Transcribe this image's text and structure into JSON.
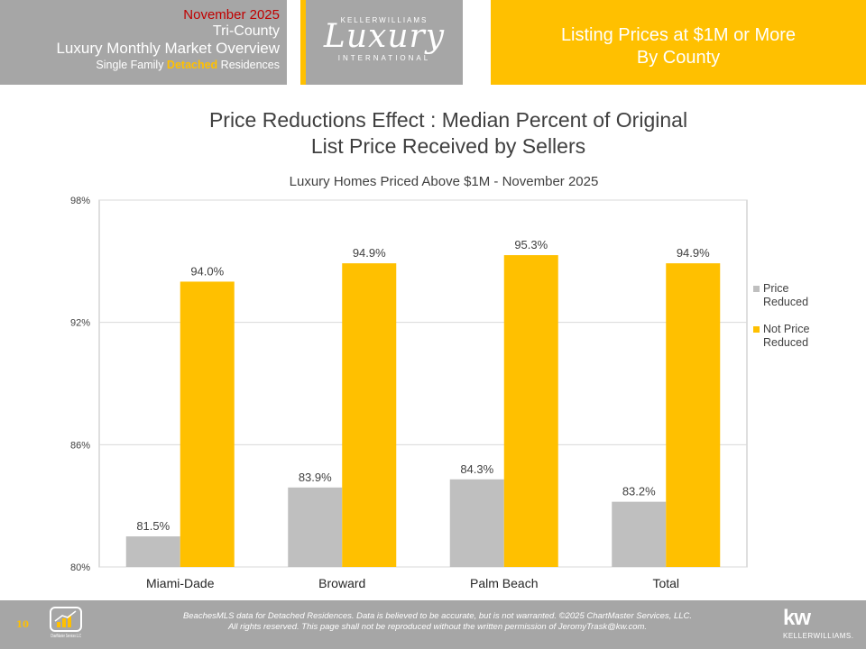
{
  "header": {
    "date": "November 2025",
    "region": "Tri-County",
    "report": "Luxury Monthly Market Overview",
    "segment_pre": "Single Family ",
    "segment_accent": "Detached",
    "segment_post": " Residences",
    "logo_top": "KELLERWILLIAMS",
    "logo_main": "Luxury",
    "logo_bottom": "INTERNATIONAL",
    "panel_line1": "Listing Prices at $1M or More",
    "panel_line2": "By County"
  },
  "chart_data": {
    "type": "bar",
    "title_line1": "Price Reductions Effect : Median Percent of Original",
    "title_line2": "List Price Received by Sellers",
    "subtitle": "Luxury Homes Priced Above $1M - November 2025",
    "categories": [
      "Miami-Dade",
      "Broward",
      "Palm Beach",
      "Total"
    ],
    "series": [
      {
        "name": "Price Reduced",
        "color": "#bfbfbf",
        "values": [
          81.5,
          83.9,
          84.3,
          83.2
        ],
        "labels": [
          "81.5%",
          "83.9%",
          "84.3%",
          "83.2%"
        ]
      },
      {
        "name": "Not Price Reduced",
        "color": "#ffc000",
        "values": [
          94.0,
          94.9,
          95.3,
          94.9
        ],
        "labels": [
          "94.0%",
          "94.9%",
          "95.3%",
          "94.9%"
        ]
      }
    ],
    "ylim": [
      80,
      98
    ],
    "yticks": [
      80,
      86,
      92,
      98
    ],
    "ytick_labels": [
      "80%",
      "86%",
      "92%",
      "98%"
    ],
    "grid": true,
    "legend_position": "right"
  },
  "footer": {
    "page_number": "10",
    "logo_label": "ChartMaster Services LLC",
    "disclaimer_line1": "BeachesMLS data for Detached Residences.  Data is believed to be accurate, but is not warranted.  ©2025  ChartMaster Services, LLC.",
    "disclaimer_line2": "All rights reserved. This page shall not be reproduced without the written permission of JeromyTrask@kw.com.",
    "brand_mark": "kw",
    "brand_name": "KELLERWILLIAMS."
  }
}
